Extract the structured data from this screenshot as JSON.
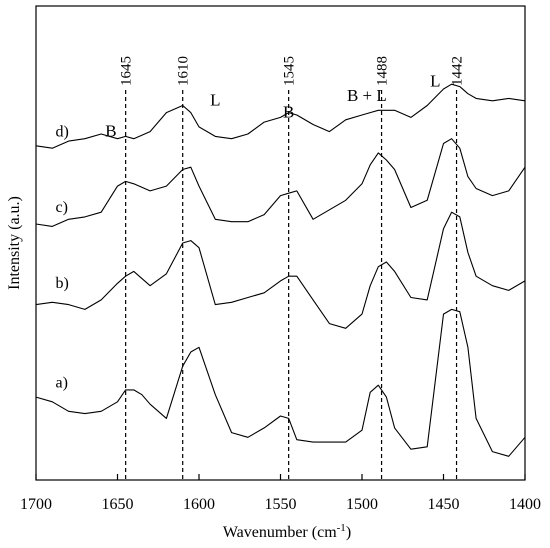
{
  "chart_data": {
    "type": "line",
    "title": "",
    "xlabel": "Wavenumber (cm",
    "xlabel_sup": "-1",
    "xlabel_close": ")",
    "ylabel": "Intensity (a.u.)",
    "xlim": [
      1700,
      1400
    ],
    "x_reversed": true,
    "xticks": [
      1700,
      1650,
      1600,
      1550,
      1500,
      1450,
      1400
    ],
    "ylim": [
      0,
      1
    ],
    "yticks": [],
    "grid": false,
    "peaks": [
      {
        "position": 1645,
        "label": "1645"
      },
      {
        "position": 1610,
        "label": "1610"
      },
      {
        "position": 1545,
        "label": "1545"
      },
      {
        "position": 1488,
        "label": "1488"
      },
      {
        "position": 1442,
        "label": "1442"
      }
    ],
    "band_labels": [
      {
        "text": "B",
        "x": 1654,
        "y": 0.725
      },
      {
        "text": "L",
        "x": 1590,
        "y": 0.79
      },
      {
        "text": "B",
        "x": 1545,
        "y": 0.765
      },
      {
        "text": "B + L",
        "x": 1497,
        "y": 0.8
      },
      {
        "text": "L",
        "x": 1455,
        "y": 0.83
      }
    ],
    "series": [
      {
        "name": "a)",
        "label_x": 1688,
        "label_y": 0.195,
        "x": [
          1700,
          1690,
          1680,
          1670,
          1660,
          1650,
          1645,
          1640,
          1635,
          1630,
          1620,
          1610,
          1605,
          1600,
          1590,
          1580,
          1570,
          1560,
          1550,
          1545,
          1540,
          1530,
          1520,
          1510,
          1500,
          1495,
          1490,
          1485,
          1480,
          1470,
          1460,
          1450,
          1445,
          1440,
          1435,
          1430,
          1420,
          1410,
          1400
        ],
        "y": [
          0.175,
          0.165,
          0.145,
          0.14,
          0.145,
          0.165,
          0.19,
          0.19,
          0.18,
          0.16,
          0.13,
          0.24,
          0.27,
          0.28,
          0.18,
          0.1,
          0.09,
          0.11,
          0.135,
          0.13,
          0.085,
          0.08,
          0.08,
          0.08,
          0.105,
          0.185,
          0.2,
          0.175,
          0.11,
          0.065,
          0.07,
          0.35,
          0.36,
          0.355,
          0.28,
          0.13,
          0.06,
          0.05,
          0.09
        ]
      },
      {
        "name": "b)",
        "label_x": 1688,
        "label_y": 0.405,
        "x": [
          1700,
          1690,
          1680,
          1670,
          1660,
          1650,
          1645,
          1640,
          1630,
          1620,
          1610,
          1605,
          1600,
          1590,
          1580,
          1570,
          1560,
          1550,
          1545,
          1540,
          1530,
          1520,
          1510,
          1500,
          1495,
          1490,
          1485,
          1480,
          1470,
          1460,
          1450,
          1445,
          1440,
          1435,
          1430,
          1420,
          1410,
          1400
        ],
        "y": [
          0.37,
          0.375,
          0.37,
          0.36,
          0.38,
          0.415,
          0.43,
          0.44,
          0.41,
          0.435,
          0.5,
          0.505,
          0.49,
          0.37,
          0.375,
          0.385,
          0.395,
          0.42,
          0.43,
          0.43,
          0.38,
          0.33,
          0.32,
          0.35,
          0.41,
          0.45,
          0.46,
          0.44,
          0.385,
          0.38,
          0.53,
          0.565,
          0.555,
          0.48,
          0.43,
          0.41,
          0.4,
          0.42
        ]
      },
      {
        "name": "c)",
        "label_x": 1688,
        "label_y": 0.565,
        "x": [
          1700,
          1690,
          1680,
          1670,
          1660,
          1650,
          1645,
          1640,
          1630,
          1620,
          1610,
          1605,
          1600,
          1590,
          1580,
          1570,
          1560,
          1550,
          1545,
          1540,
          1530,
          1520,
          1510,
          1500,
          1495,
          1490,
          1485,
          1480,
          1470,
          1460,
          1450,
          1445,
          1440,
          1435,
          1430,
          1420,
          1410,
          1400
        ],
        "y": [
          0.54,
          0.535,
          0.55,
          0.555,
          0.565,
          0.62,
          0.63,
          0.625,
          0.61,
          0.62,
          0.655,
          0.66,
          0.62,
          0.55,
          0.545,
          0.545,
          0.56,
          0.6,
          0.605,
          0.61,
          0.55,
          0.57,
          0.59,
          0.625,
          0.665,
          0.69,
          0.675,
          0.655,
          0.575,
          0.59,
          0.71,
          0.72,
          0.7,
          0.64,
          0.615,
          0.6,
          0.61,
          0.66
        ]
      },
      {
        "name": "d)",
        "label_x": 1688,
        "label_y": 0.725,
        "x": [
          1700,
          1690,
          1680,
          1670,
          1660,
          1650,
          1645,
          1640,
          1630,
          1620,
          1610,
          1605,
          1600,
          1590,
          1580,
          1570,
          1560,
          1550,
          1545,
          1540,
          1530,
          1520,
          1510,
          1500,
          1495,
          1490,
          1485,
          1480,
          1470,
          1460,
          1450,
          1445,
          1440,
          1435,
          1430,
          1420,
          1410,
          1400
        ],
        "y": [
          0.705,
          0.7,
          0.715,
          0.72,
          0.73,
          0.72,
          0.725,
          0.72,
          0.735,
          0.775,
          0.79,
          0.775,
          0.745,
          0.725,
          0.72,
          0.73,
          0.755,
          0.765,
          0.775,
          0.77,
          0.75,
          0.735,
          0.76,
          0.77,
          0.775,
          0.78,
          0.78,
          0.78,
          0.765,
          0.79,
          0.825,
          0.835,
          0.83,
          0.815,
          0.805,
          0.8,
          0.805,
          0.8
        ]
      }
    ]
  }
}
